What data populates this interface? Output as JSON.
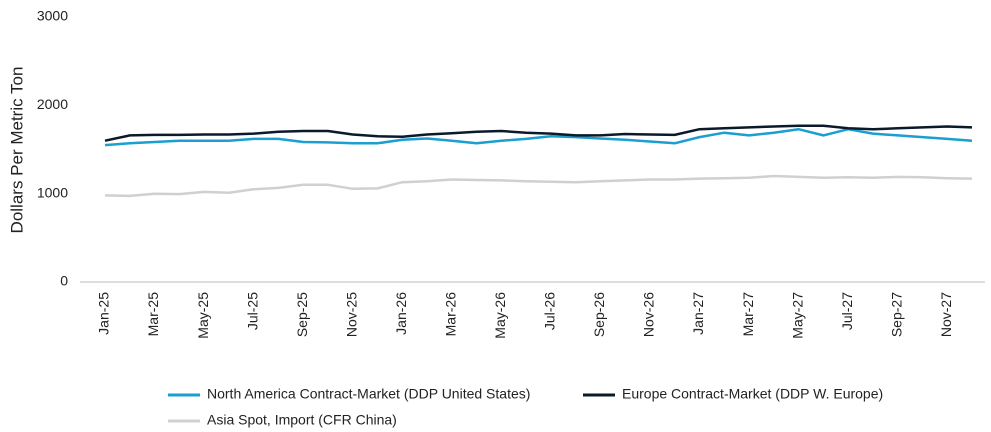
{
  "chart_data": {
    "type": "line",
    "y_label": "Dollars Per Metric Ton",
    "categories": [
      "Jan-25",
      null,
      "Mar-25",
      null,
      "May-25",
      null,
      "Jul-25",
      null,
      "Sep-25",
      null,
      "Nov-25",
      null,
      "Jan-26",
      null,
      "Mar-26",
      null,
      "May-26",
      null,
      "Jul-26",
      null,
      "Sep-26",
      null,
      "Nov-26",
      null,
      "Jan-27",
      null,
      "Mar-27",
      null,
      "May-27",
      null,
      "Jul-27",
      null,
      "Sep-27",
      null,
      "Nov-27",
      null
    ],
    "series": [
      {
        "name": "North America Contract-Market (DDP United States)",
        "color": "#1a9fd0",
        "values": [
          1550,
          1570,
          1585,
          1600,
          1600,
          1600,
          1620,
          1620,
          1585,
          1580,
          1570,
          1570,
          1610,
          1625,
          1600,
          1570,
          1600,
          1620,
          1650,
          1640,
          1625,
          1610,
          1590,
          1570,
          1640,
          1690,
          1660,
          1690,
          1730,
          1660,
          1730,
          1680,
          1660,
          1640,
          1620,
          1600
        ]
      },
      {
        "name": "Europe Contract-Market (DDP W. Europe)",
        "color": "#0b1a2b",
        "values": [
          1600,
          1660,
          1665,
          1665,
          1670,
          1670,
          1680,
          1700,
          1710,
          1710,
          1670,
          1650,
          1645,
          1670,
          1685,
          1700,
          1710,
          1690,
          1680,
          1660,
          1660,
          1675,
          1670,
          1665,
          1730,
          1740,
          1750,
          1760,
          1770,
          1770,
          1740,
          1730,
          1740,
          1750,
          1760,
          1750
        ]
      },
      {
        "name": "Asia Spot, Import (CFR China)",
        "color": "#d0d0d0",
        "values": [
          980,
          975,
          1000,
          995,
          1020,
          1010,
          1050,
          1065,
          1100,
          1100,
          1055,
          1060,
          1130,
          1140,
          1160,
          1155,
          1150,
          1140,
          1135,
          1130,
          1140,
          1150,
          1160,
          1160,
          1170,
          1175,
          1180,
          1200,
          1190,
          1180,
          1185,
          1180,
          1190,
          1185,
          1175,
          1170
        ]
      }
    ],
    "ylim": [
      0,
      3000
    ],
    "yticks": [
      0,
      1000,
      2000,
      3000
    ],
    "grid": false
  }
}
